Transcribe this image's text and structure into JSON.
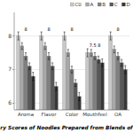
{
  "chart_data": {
    "type": "bar",
    "title": "ry Scores of Noodles Prepared from Blends of",
    "categories": [
      "Aroma",
      "Flavor",
      "Color",
      "Mouthfeel",
      "OA"
    ],
    "series": [
      {
        "name": "C0",
        "color": "#c8c8c8",
        "values": [
          8.0,
          8.0,
          8.0,
          7.5,
          8.0
        ],
        "errors": [
          0.12,
          0.12,
          0.12,
          0.12,
          0.12
        ]
      },
      {
        "name": "A",
        "color": "#a8a8a8",
        "values": [
          7.7,
          7.7,
          7.5,
          7.5,
          7.6
        ],
        "errors": [
          0.1,
          0.1,
          0.1,
          0.1,
          0.1
        ]
      },
      {
        "name": "B",
        "color": "#808080",
        "values": [
          7.4,
          7.4,
          7.0,
          7.4,
          7.4
        ],
        "errors": [
          0.1,
          0.1,
          0.1,
          0.1,
          0.1
        ]
      },
      {
        "name": "C",
        "color": "#585858",
        "values": [
          7.1,
          7.1,
          6.6,
          7.3,
          7.2
        ],
        "errors": [
          0.1,
          0.1,
          0.1,
          0.1,
          0.1
        ]
      },
      {
        "name": "D",
        "color": "#383838",
        "values": [
          6.8,
          6.5,
          6.2,
          7.2,
          7.0
        ],
        "errors": [
          0.12,
          0.12,
          0.12,
          0.12,
          0.12
        ]
      }
    ],
    "annotations": [
      "8",
      "8",
      "8",
      "7.5 8",
      "8"
    ],
    "ylim": [
      5.8,
      8.7
    ],
    "yticks": [
      6,
      7,
      8
    ],
    "grid": true,
    "legend": "upper right"
  }
}
